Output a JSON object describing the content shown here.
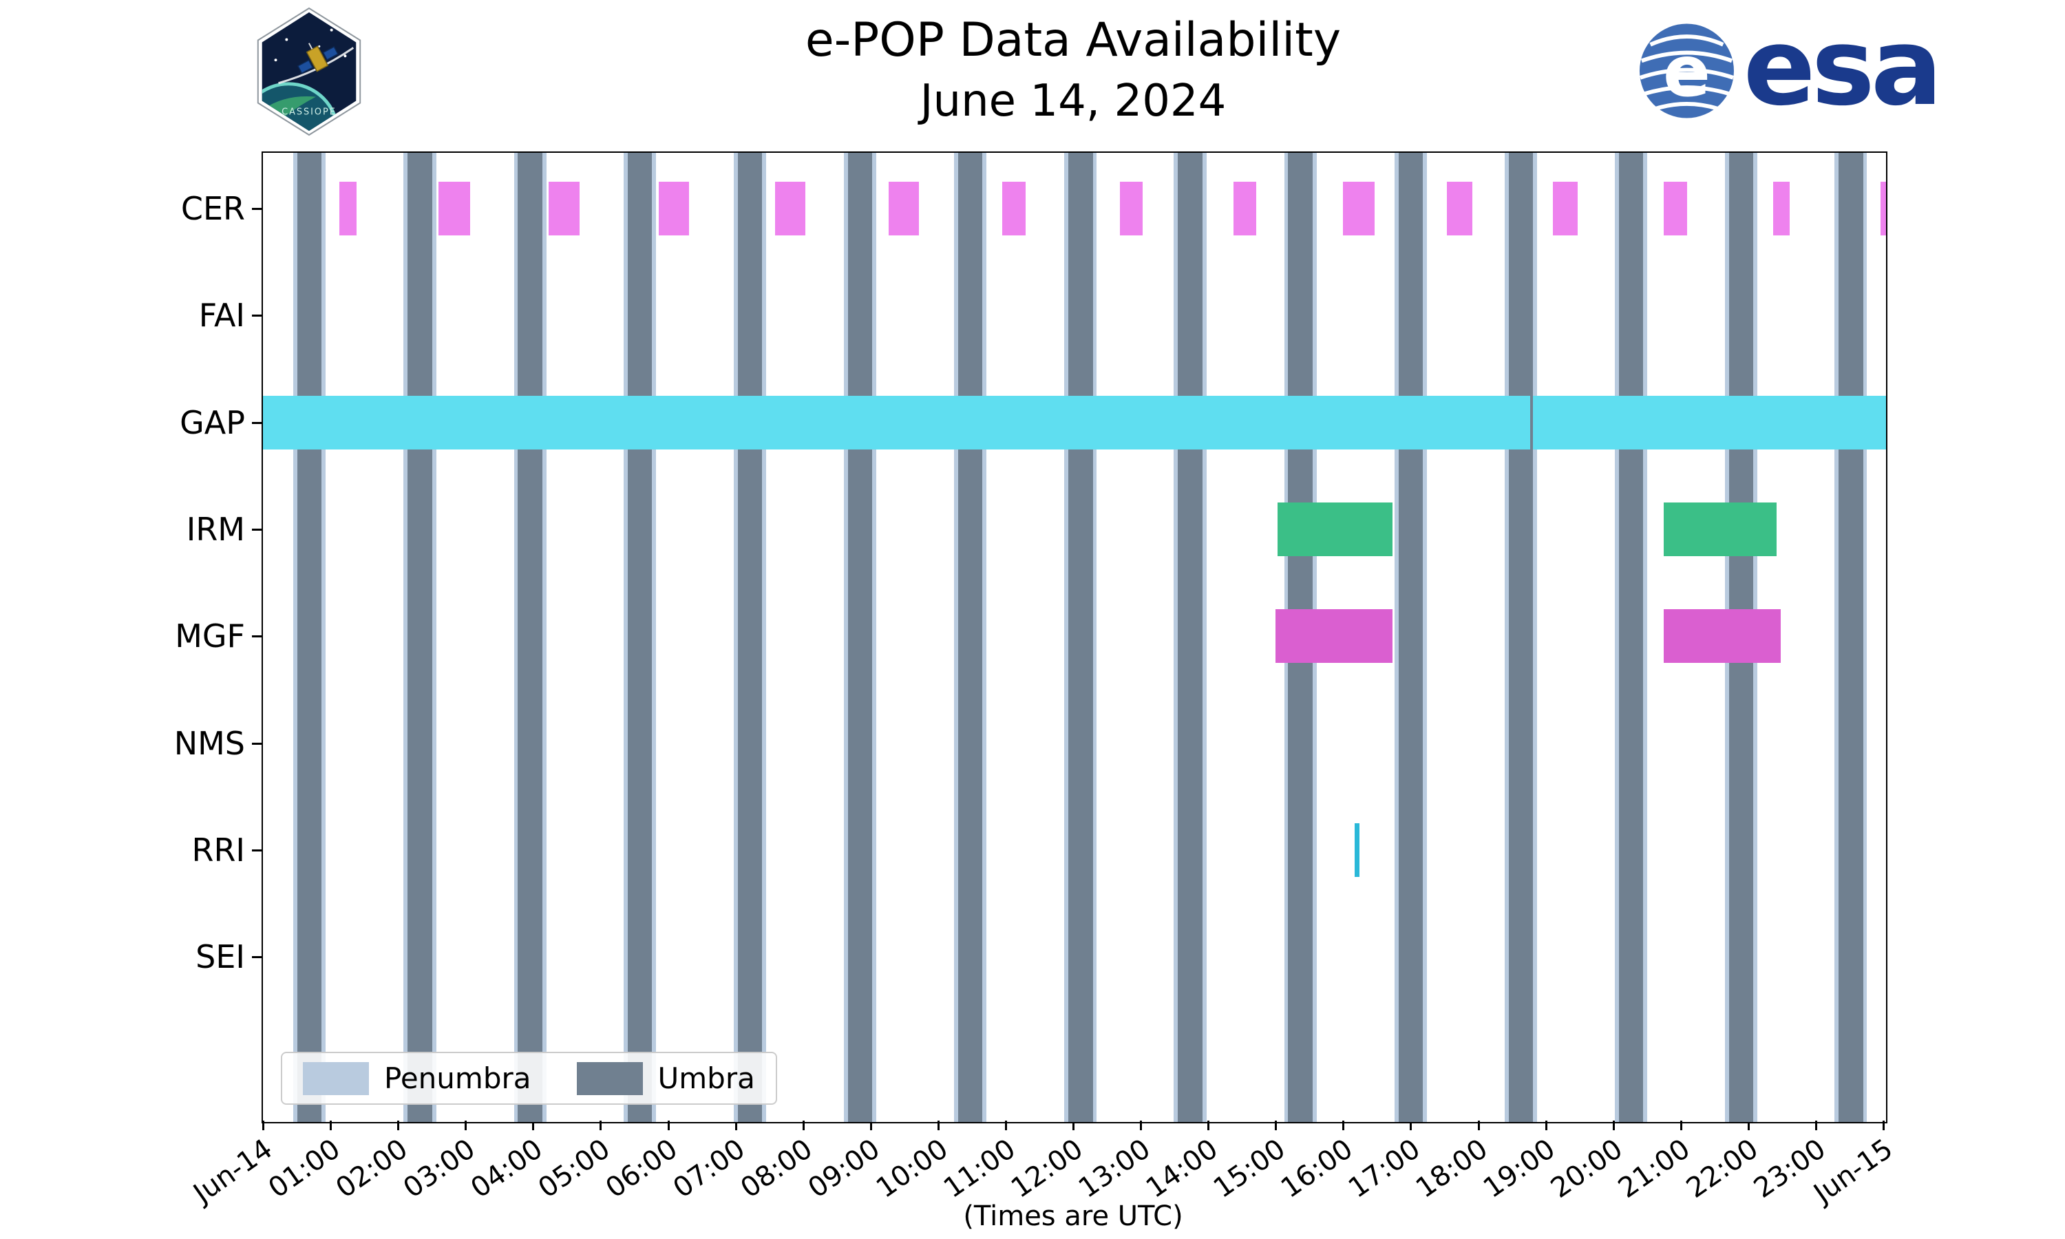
{
  "title": {
    "line1": "e-POP Data Availability",
    "line2": "June 14, 2024"
  },
  "caption": "(Times are UTC)",
  "branding": {
    "esa_wordmark": "esa",
    "mission_patch_text": "CASSIOPE"
  },
  "legend": {
    "items": [
      {
        "label": "Penumbra",
        "color": "#b9cbdf"
      },
      {
        "label": "Umbra",
        "color": "#708090"
      }
    ]
  },
  "axes": {
    "y_labels": [
      "CER",
      "FAI",
      "GAP",
      "IRM",
      "MGF",
      "NMS",
      "RRI",
      "SEI"
    ],
    "x_ticks": [
      "Jun-14",
      "01:00",
      "02:00",
      "03:00",
      "04:00",
      "05:00",
      "06:00",
      "07:00",
      "08:00",
      "09:00",
      "10:00",
      "11:00",
      "12:00",
      "13:00",
      "14:00",
      "15:00",
      "16:00",
      "17:00",
      "18:00",
      "19:00",
      "20:00",
      "21:00",
      "22:00",
      "23:00",
      "Jun-15"
    ],
    "x_range_hours": [
      0,
      24
    ]
  },
  "chart_data": {
    "type": "timeline",
    "title": "e-POP Data Availability",
    "date": "June 14, 2024",
    "time_unit": "hours UTC from 2024-06-14 00:00",
    "x_range_hours": [
      0,
      24
    ],
    "legend_position": "lower-left",
    "shadow": {
      "umbra_color": "#708090",
      "penumbra_color": "#b9cbdf",
      "penumbra_width_hours": 0.06,
      "umbra_intervals": [
        [
          0.51,
          0.87
        ],
        [
          2.14,
          2.5
        ],
        [
          3.77,
          4.13
        ],
        [
          5.39,
          5.75
        ],
        [
          7.02,
          7.38
        ],
        [
          8.65,
          9.01
        ],
        [
          10.28,
          10.64
        ],
        [
          11.91,
          12.27
        ],
        [
          13.53,
          13.89
        ],
        [
          15.16,
          15.52
        ],
        [
          16.79,
          17.15
        ],
        [
          18.42,
          18.78
        ],
        [
          20.05,
          20.41
        ],
        [
          21.68,
          22.04
        ],
        [
          23.3,
          23.66
        ]
      ]
    },
    "series": [
      {
        "instrument": "CER",
        "color": "#ee82ee",
        "intervals": [
          [
            1.13,
            1.38
          ],
          [
            2.6,
            3.06
          ],
          [
            4.22,
            4.68
          ],
          [
            5.85,
            6.3
          ],
          [
            7.57,
            8.02
          ],
          [
            9.25,
            9.7
          ],
          [
            10.93,
            11.28
          ],
          [
            12.67,
            13.01
          ],
          [
            14.35,
            14.69
          ],
          [
            15.97,
            16.44
          ],
          [
            17.51,
            17.88
          ],
          [
            19.07,
            19.44
          ],
          [
            20.71,
            21.06
          ],
          [
            22.33,
            22.58
          ],
          [
            23.92,
            24.0
          ]
        ]
      },
      {
        "instrument": "FAI",
        "intervals": []
      },
      {
        "instrument": "GAP",
        "color": "#5fdef0",
        "intervals": [
          [
            0.0,
            18.74
          ],
          [
            18.78,
            24.0
          ]
        ]
      },
      {
        "instrument": "IRM",
        "color": "#3bbf87",
        "intervals": [
          [
            15.0,
            16.7
          ],
          [
            20.71,
            22.38
          ]
        ]
      },
      {
        "instrument": "MGF",
        "color": "#da5fd0",
        "intervals": [
          [
            14.97,
            16.7
          ],
          [
            20.71,
            22.44
          ]
        ]
      },
      {
        "instrument": "NMS",
        "intervals": []
      },
      {
        "instrument": "RRI",
        "color": "#2ab8d8",
        "intervals": [
          [
            16.14,
            16.21
          ]
        ]
      },
      {
        "instrument": "SEI",
        "intervals": []
      }
    ]
  }
}
